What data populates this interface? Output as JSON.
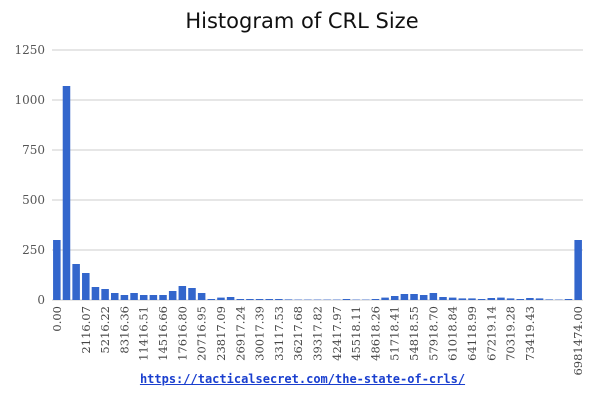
{
  "chart_data": {
    "type": "bar",
    "title": "Histogram of CRL Size",
    "xlabel": "",
    "ylabel": "",
    "ylim": [
      0,
      1250
    ],
    "yticks": [
      0,
      250,
      500,
      750,
      1000,
      1250
    ],
    "grid": true,
    "color": "#3366cc",
    "bin_count": 55,
    "tick_labels": [
      "0.00",
      "2116.07",
      "5216.22",
      "8316.36",
      "11416.51",
      "14516.66",
      "17616.80",
      "20716.95",
      "23817.09",
      "26917.24",
      "30017.39",
      "33117.53",
      "36217.68",
      "39317.82",
      "42417.97",
      "45518.11",
      "48618.26",
      "51718.41",
      "54818.55",
      "57918.70",
      "61018.84",
      "64118.99",
      "67219.14",
      "70319.28",
      "73419.43",
      "6981474.00"
    ],
    "values": [
      300,
      1070,
      180,
      135,
      65,
      55,
      35,
      25,
      35,
      25,
      25,
      25,
      45,
      70,
      60,
      35,
      5,
      12,
      15,
      5,
      5,
      5,
      5,
      5,
      3,
      2,
      2,
      2,
      2,
      2,
      5,
      2,
      2,
      5,
      12,
      20,
      30,
      30,
      25,
      35,
      15,
      12,
      8,
      8,
      5,
      10,
      12,
      8,
      5,
      10,
      8,
      3,
      2,
      5,
      300
    ]
  },
  "source": {
    "link_text": "https://tacticalsecret.com/the-state-of-crls/"
  }
}
